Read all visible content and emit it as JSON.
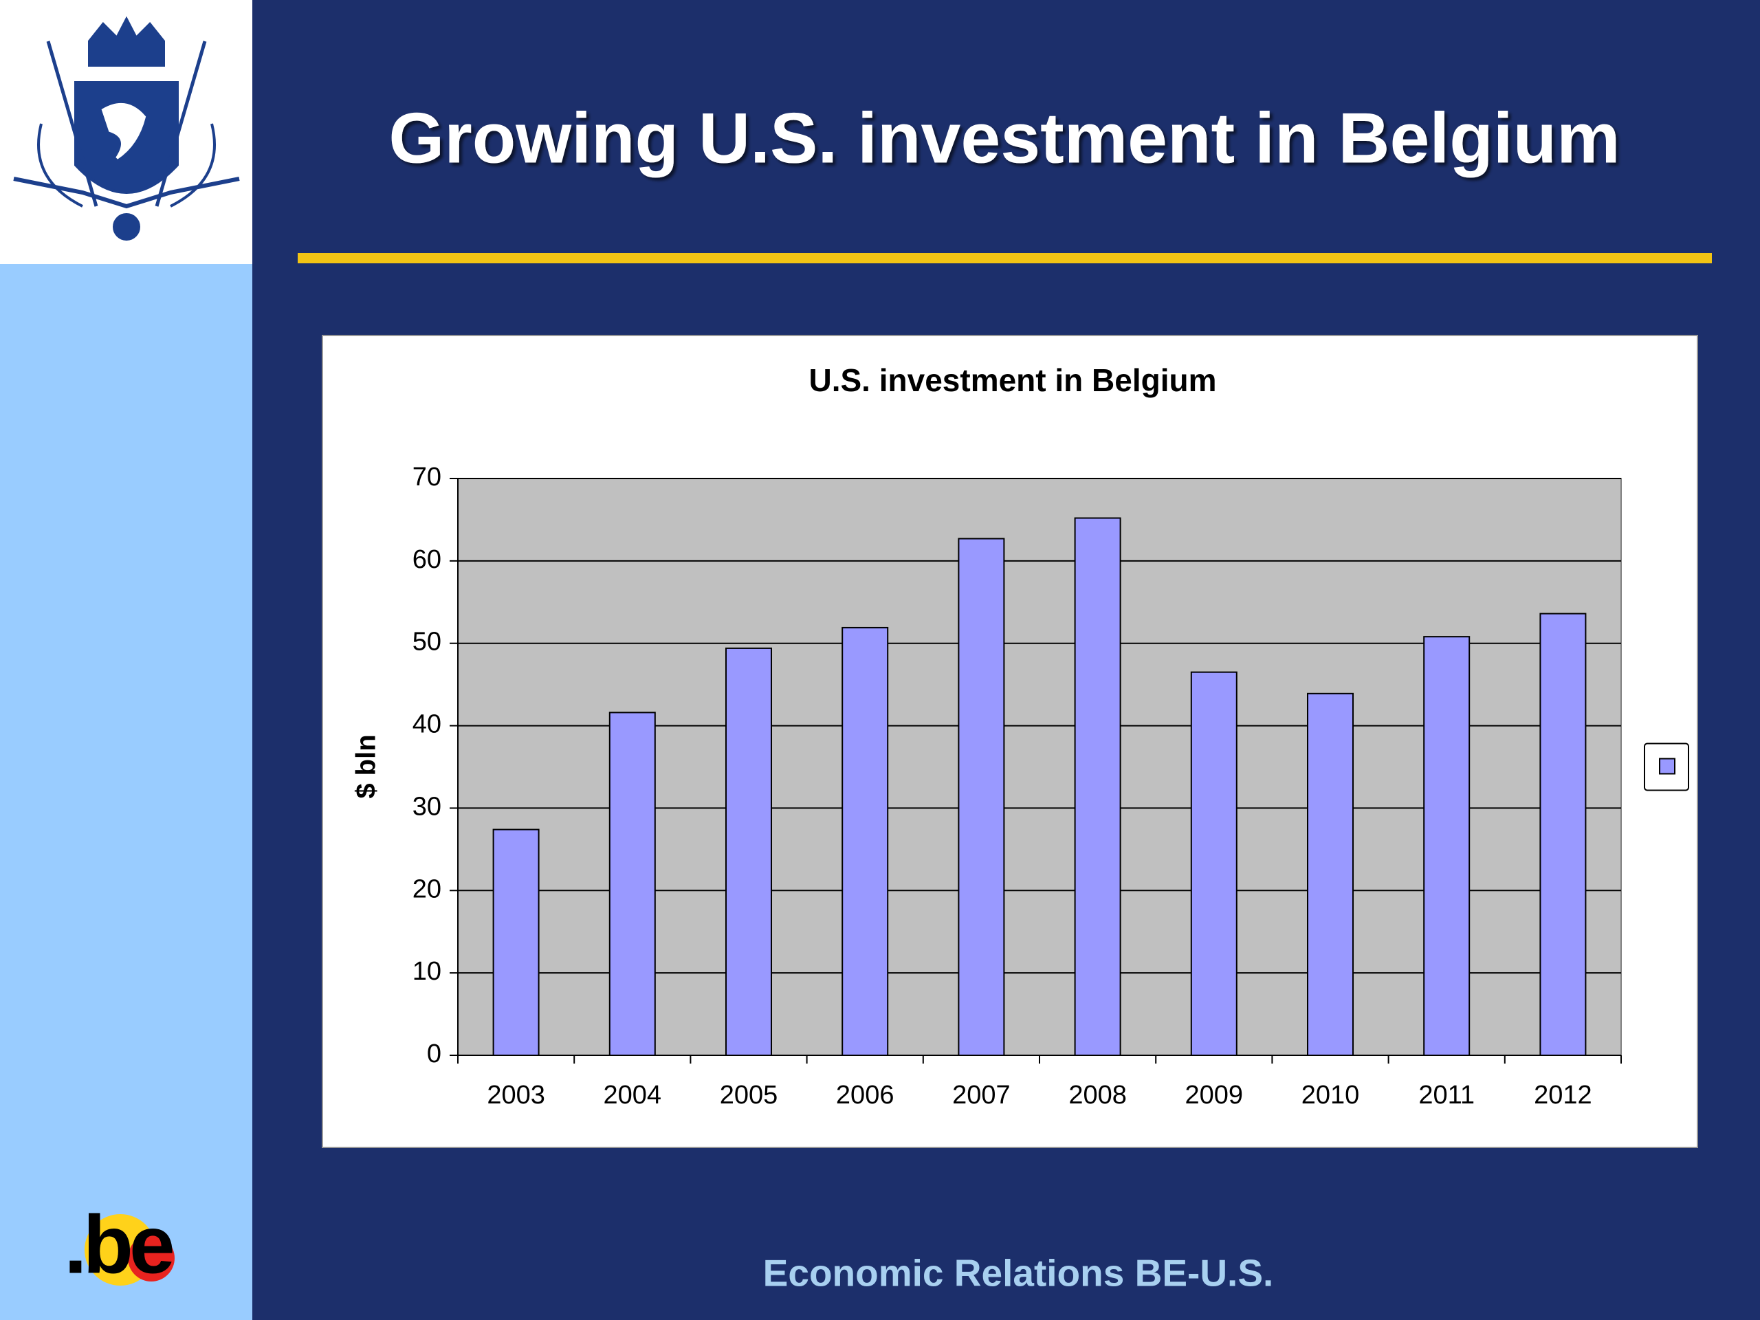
{
  "slide": {
    "title": "Growing U.S. investment in Belgium",
    "footer": "Economic Relations BE-U.S.",
    "logo_text": ".be"
  },
  "chart_data": {
    "type": "bar",
    "title": "U.S. investment in Belgium",
    "y_label": "$ bln",
    "categories": [
      "2003",
      "2004",
      "2005",
      "2006",
      "2007",
      "2008",
      "2009",
      "2010",
      "2011",
      "2012"
    ],
    "series": [
      {
        "color": "#9999ff",
        "values": [
          27.4,
          41.6,
          49.4,
          51.9,
          62.7,
          65.2,
          46.5,
          43.9,
          50.8,
          53.6
        ]
      }
    ],
    "ylim": [
      0,
      70
    ],
    "yticks": [
      0,
      10,
      20,
      30,
      40,
      50,
      60,
      70
    ],
    "grid": true,
    "legend": "right"
  }
}
